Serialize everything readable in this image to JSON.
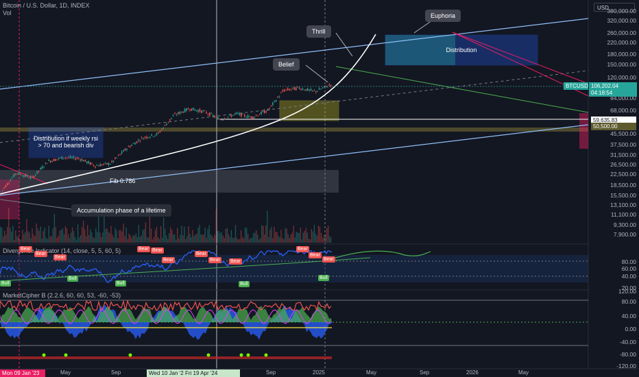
{
  "header": {
    "symbol_line": "Bitcoin / U.S. Dollar, 1D, INDEX",
    "volume_label": "Vol",
    "currency": "USD"
  },
  "annotations": {
    "euphoria": "Euphoria",
    "thrill": "Thrill",
    "belief": "Belief",
    "distribution": "Distribution",
    "distribution_if": "Distribution if weekly rsi > 70 and bearish div",
    "fib": "Fib 0.786",
    "accumulation": "Accumulation phase of a lifetime"
  },
  "price_axis": {
    "ticks": [
      "380,000.00",
      "320,000.00",
      "260,000.00",
      "220,000.00",
      "180,000.00",
      "150,000.00",
      "120,000.00",
      "84,000.00",
      "68,000.00",
      "45,500.00",
      "37,500.00",
      "31,500.00",
      "26,500.00",
      "22,500.00",
      "18,500.00",
      "15,500.00",
      "13,100.00",
      "11,100.00",
      "9,300.00",
      "7,900.00"
    ],
    "current_symbol": "BTCUSD",
    "current_price": "106,202.04",
    "countdown": "04:18:54",
    "line_price": "59,635.83",
    "line_price2": "50,500.00"
  },
  "indicator1": {
    "title": "Divergence Indicator (14, close, 5, 5, 60, 5)",
    "axis": [
      "80.00",
      "60.00",
      "40.00",
      "20.00"
    ],
    "bear_labels": [
      "Bear",
      "Bear",
      "Bear",
      "Bear",
      "Bear",
      "Bear",
      "Bear",
      "Bear",
      "Bear",
      "Bear",
      "Bear",
      "Bear"
    ],
    "bull_labels": [
      "Bull",
      "Bull",
      "Bull",
      "Bull",
      "Bull"
    ]
  },
  "indicator2": {
    "title": "MarketCipher B (2.2.6, 60, 60, 53, -60, -53)",
    "axis": [
      "120.00",
      "80.00",
      "40.00",
      "0.00",
      "-40.00",
      "-80.00",
      "-120.00"
    ]
  },
  "time_axis": {
    "ticks": [
      "May",
      "Sep",
      "Sep",
      "2025",
      "May",
      "Sep",
      "2026",
      "May"
    ],
    "highlight_left": "Mon 09 Jan '23",
    "highlight_mid": "Wed 10 Jan '2",
    "highlight_mid2": "Fri 19 Apr '24"
  },
  "chart_data": {
    "type": "candlestick",
    "title": "Bitcoin / U.S. Dollar, 1D, INDEX",
    "price_scale": "log",
    "last_price": 106202.04,
    "series": [
      {
        "name": "BTCUSD",
        "approx_closes": [
          16500,
          23000,
          21000,
          28000,
          30000,
          29500,
          26000,
          27000,
          35000,
          42000,
          45000,
          62000,
          70000,
          66000,
          58000,
          64000,
          60000,
          68000,
          96000,
          100000,
          94000,
          106202
        ]
      }
    ],
    "colors": {
      "up": "#26a69a",
      "down": "#ef5350",
      "background": "#131722",
      "trendline": "#90bff9",
      "parabola": "#ffffff",
      "green_channel": "#4caf50",
      "magenta": "#e91e63"
    }
  }
}
